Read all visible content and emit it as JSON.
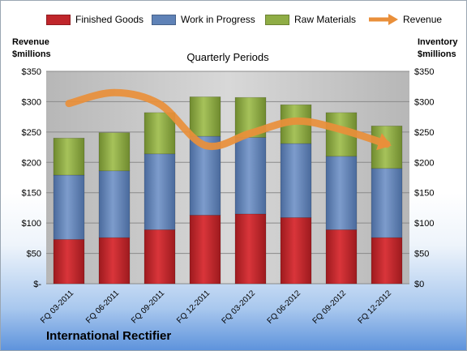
{
  "legend": {
    "finished_label": "Finished Goods",
    "wip_label": "Work in Progress",
    "raw_label": "Raw Materials",
    "revenue_label": "Revenue"
  },
  "left_axis_title": [
    "Revenue",
    "$millions"
  ],
  "right_axis_title": [
    "Inventory",
    "$millions"
  ],
  "company": "International Rectifier",
  "colors": {
    "finished": "#c0262b",
    "wip": "#5f82b7",
    "raw": "#8fad45",
    "revenue": "#e98f3a",
    "plot_bg": "#c9c9c9"
  },
  "chart_data": {
    "type": "bar",
    "title": "Quarterly Periods",
    "stacked": true,
    "categories": [
      "FQ 03-2011",
      "FQ 06-2011",
      "FQ 09-2011",
      "FQ 12-2011",
      "FQ 03-2012",
      "FQ 06-2012",
      "FQ 09-2012",
      "FQ 12-2012"
    ],
    "series": [
      {
        "name": "Finished Goods",
        "values": [
          73,
          76,
          89,
          113,
          115,
          109,
          89,
          76
        ]
      },
      {
        "name": "Work in Progress",
        "values": [
          106,
          110,
          125,
          130,
          126,
          122,
          121,
          114
        ]
      },
      {
        "name": "Raw Materials",
        "values": [
          61,
          63,
          68,
          65,
          66,
          64,
          72,
          70
        ]
      }
    ],
    "line_series": {
      "name": "Revenue",
      "values": [
        297,
        315,
        296,
        228,
        248,
        268,
        254,
        230
      ]
    },
    "ylim": [
      0,
      350
    ],
    "yticks": [
      0,
      50,
      100,
      150,
      200,
      250,
      300,
      350
    ],
    "left_tick_labels": [
      "$-",
      "$50",
      "$100",
      "$150",
      "$200",
      "$250",
      "$300",
      "$350"
    ],
    "right_tick_labels": [
      "$0",
      "$50",
      "$100",
      "$150",
      "$200",
      "$250",
      "$300",
      "$350"
    ],
    "grid": true
  }
}
